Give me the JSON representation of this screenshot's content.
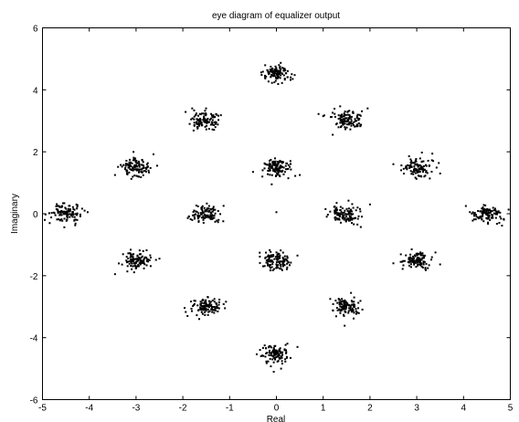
{
  "chart_data": {
    "type": "scatter",
    "title": "eye diagram of equalizer output",
    "xlabel": "Real",
    "ylabel": "Imaginary",
    "xlim": [
      -5,
      5
    ],
    "ylim": [
      -6,
      6
    ],
    "xticks": [
      -5,
      -4,
      -3,
      -2,
      -1,
      0,
      1,
      2,
      3,
      4,
      5
    ],
    "yticks": [
      -6,
      -4,
      -2,
      0,
      2,
      4,
      6
    ],
    "grid": false,
    "marker_color": "#000000",
    "cluster_centers": [
      [
        0,
        4.5
      ],
      [
        -1.5,
        3
      ],
      [
        1.5,
        3
      ],
      [
        -3,
        1.5
      ],
      [
        0,
        1.5
      ],
      [
        3,
        1.5
      ],
      [
        -4.5,
        0
      ],
      [
        -1.5,
        0
      ],
      [
        1.5,
        0
      ],
      [
        4.5,
        0
      ],
      [
        -3,
        -1.5
      ],
      [
        0,
        -1.5
      ],
      [
        3,
        -1.5
      ],
      [
        -1.5,
        -3
      ],
      [
        1.5,
        -3
      ],
      [
        0,
        -4.5
      ]
    ],
    "cluster_spread": 0.15,
    "points_per_cluster": 110,
    "outliers": [
      [
        1.0,
        3.15
      ],
      [
        -1.8,
        3.4
      ],
      [
        1.95,
        3.4
      ],
      [
        -3.45,
        1.25
      ],
      [
        -2.55,
        1.55
      ],
      [
        -0.5,
        1.35
      ],
      [
        -0.3,
        1.2
      ],
      [
        0.3,
        1.7
      ],
      [
        0.5,
        1.25
      ],
      [
        -0.1,
        0.95
      ],
      [
        2.5,
        1.6
      ],
      [
        3.5,
        1.3
      ],
      [
        -4.1,
        0.1
      ],
      [
        -4.95,
        -0.2
      ],
      [
        0.0,
        0.05
      ],
      [
        1.05,
        0.15
      ],
      [
        2.0,
        0.3
      ],
      [
        4.05,
        0.25
      ],
      [
        -3.45,
        -1.95
      ],
      [
        -2.5,
        -1.45
      ],
      [
        0.45,
        -1.35
      ],
      [
        2.5,
        -1.6
      ],
      [
        3.4,
        -1.25
      ],
      [
        -1.9,
        -3.3
      ],
      [
        -1.1,
        -3.05
      ],
      [
        1.15,
        -2.75
      ],
      [
        0.45,
        -4.3
      ],
      [
        -0.25,
        -4.25
      ],
      [
        0.1,
        -5.0
      ]
    ]
  }
}
